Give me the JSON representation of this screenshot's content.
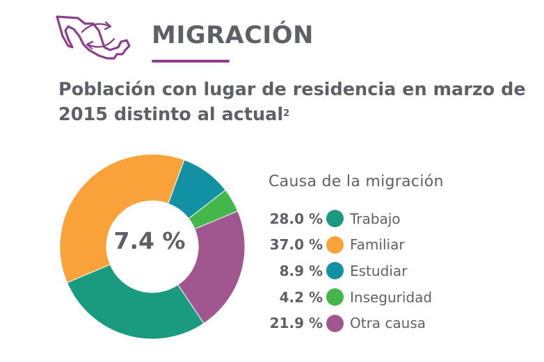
{
  "header": {
    "title": "MIGRACIÓN",
    "subtitle": "Población con lugar de residencia en marzo de 2015 distinto al actual",
    "footnote_mark": "2"
  },
  "icon": {
    "name": "mexico-map-migration-icon",
    "color": "#8c3f88"
  },
  "colors": {
    "text": "#5f5f68",
    "accent": "#8c3f88"
  },
  "chart_data": {
    "type": "pie",
    "donut": true,
    "center_label": "7.4 %",
    "legend_title": "Causa de la migración",
    "legend_position": "right",
    "categories": [
      "Trabajo",
      "Familiar",
      "Estudiar",
      "Inseguridad",
      "Otra causa"
    ],
    "values": [
      28.0,
      37.0,
      8.9,
      4.2,
      21.9
    ],
    "value_labels": [
      "28.0 %",
      "37.0 %",
      "8.9 %",
      "4.2 %",
      "21.9 %"
    ],
    "colors": [
      "#1a9a7e",
      "#f9a23a",
      "#1391a4",
      "#45b649",
      "#a0578f"
    ]
  }
}
